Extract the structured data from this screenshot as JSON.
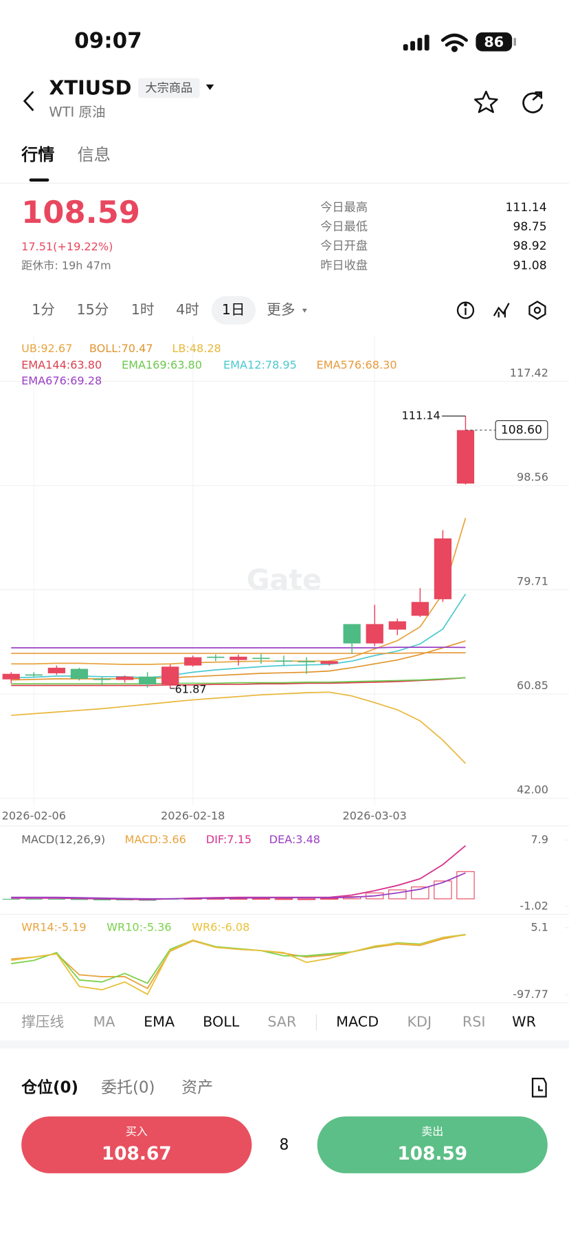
{
  "status_bar": {
    "time": "09:07",
    "battery": "86"
  },
  "header": {
    "symbol": "XTIUSD",
    "tag": "大宗商品",
    "subtitle": "WTI 原油"
  },
  "tabs": [
    "行情",
    "信息"
  ],
  "quote": {
    "price": "108.59",
    "change": "17.51(+19.22%)",
    "market_close": "距休市: 19h 47m",
    "stats": [
      {
        "label": "今日最高",
        "value": "111.14"
      },
      {
        "label": "今日最低",
        "value": "98.75"
      },
      {
        "label": "今日开盘",
        "value": "98.92"
      },
      {
        "label": "昨日收盘",
        "value": "91.08"
      }
    ]
  },
  "intervals": [
    "1分",
    "15分",
    "1时",
    "4时",
    "1日",
    "更多"
  ],
  "chart_data": [
    {
      "type": "candlestick",
      "categories": [
        null,
        "2026-02-06",
        null,
        null,
        null,
        null,
        null,
        null,
        "2026-02-18",
        null,
        null,
        null,
        null,
        null,
        null,
        null,
        "2026-03-03",
        null,
        null,
        null,
        null
      ],
      "open": [
        63.5,
        64.4,
        64.6,
        65.4,
        63.6,
        63.4,
        64.0,
        62.6,
        66.0,
        67.6,
        67.0,
        67.4,
        66.9,
        66.8,
        66.3,
        73.5,
        70.0,
        72.5,
        75.0,
        78.0,
        98.92
      ],
      "high": [
        64.8,
        64.8,
        66.0,
        65.6,
        64.0,
        64.2,
        64.8,
        66.2,
        67.8,
        68.0,
        68.0,
        68.1,
        67.8,
        67.5,
        66.9,
        73.5,
        77.0,
        74.5,
        80.0,
        90.5,
        111.14
      ],
      "low": [
        62.8,
        63.9,
        64.3,
        63.3,
        62.5,
        62.9,
        62.0,
        61.87,
        65.8,
        66.8,
        66.0,
        66.3,
        65.9,
        64.5,
        66.0,
        68.1,
        69.5,
        71.5,
        74.8,
        77.5,
        98.75
      ],
      "close": [
        64.5,
        64.2,
        65.6,
        63.6,
        63.5,
        64.0,
        62.6,
        65.8,
        67.5,
        67.4,
        67.6,
        67.3,
        66.7,
        66.7,
        66.8,
        70.0,
        73.5,
        74.0,
        77.5,
        89.0,
        108.59
      ],
      "up_color": "#e8475f",
      "down_color": "#4dbb83",
      "series": [
        {
          "name": "UB:92.67",
          "color": "#e8a33d",
          "values": [
            66.3,
            66.3,
            66.4,
            66.4,
            66.3,
            66.2,
            66.2,
            66.3,
            66.5,
            66.6,
            66.7,
            66.8,
            66.8,
            66.8,
            66.8,
            67.5,
            69,
            70.5,
            73,
            79,
            92.67
          ]
        },
        {
          "name": "BOLL:70.47",
          "color": "#e0952e",
          "values": [
            63.4,
            63.5,
            63.6,
            63.6,
            63.6,
            63.6,
            63.7,
            63.8,
            64,
            64.2,
            64.4,
            64.6,
            64.7,
            64.8,
            65,
            65.6,
            66.3,
            67,
            68,
            69.2,
            70.47
          ]
        },
        {
          "name": "LB:48.28",
          "color": "#e8b73a",
          "values": [
            57,
            57.3,
            57.6,
            57.9,
            58.2,
            58.6,
            59,
            59.4,
            59.8,
            60.1,
            60.4,
            60.7,
            60.9,
            61.1,
            61.2,
            60.5,
            59.3,
            58,
            56,
            52.5,
            48.28
          ]
        },
        {
          "name": "EMA144:63.80",
          "color": "#d9414f",
          "values": [
            62.4,
            62.4,
            62.4,
            62.4,
            62.4,
            62.4,
            62.4,
            62.5,
            62.5,
            62.6,
            62.6,
            62.7,
            62.7,
            62.8,
            62.8,
            62.9,
            63,
            63.1,
            63.3,
            63.5,
            63.8
          ]
        },
        {
          "name": "EMA169:63.80",
          "color": "#6cc84f",
          "values": [
            62.7,
            62.7,
            62.7,
            62.7,
            62.7,
            62.7,
            62.7,
            62.8,
            62.8,
            62.8,
            62.9,
            62.9,
            62.9,
            63,
            63,
            63.1,
            63.2,
            63.3,
            63.4,
            63.6,
            63.8
          ]
        },
        {
          "name": "EMA12:78.95",
          "color": "#4cc9d0",
          "values": [
            63.8,
            63.9,
            64.1,
            64.1,
            64,
            64,
            63.8,
            64.2,
            64.8,
            65.2,
            65.5,
            65.8,
            66,
            66.1,
            66.2,
            66.8,
            67.8,
            68.6,
            69.9,
            72.6,
            78.95
          ]
        },
        {
          "name": "EMA576:68.30",
          "color": "#e89a3c",
          "values": [
            68.2,
            68.2,
            68.2,
            68.2,
            68.2,
            68.2,
            68.2,
            68.2,
            68.2,
            68.2,
            68.2,
            68.2,
            68.2,
            68.2,
            68.2,
            68.2,
            68.2,
            68.2,
            68.3,
            68.3,
            68.3
          ]
        },
        {
          "name": "EMA676:69.28",
          "color": "#9b3fc4",
          "values": [
            69.2,
            69.2,
            69.2,
            69.2,
            69.2,
            69.2,
            69.2,
            69.2,
            69.2,
            69.2,
            69.2,
            69.2,
            69.2,
            69.2,
            69.2,
            69.2,
            69.2,
            69.3,
            69.3,
            69.3,
            69.28
          ]
        }
      ],
      "ylim": [
        40.71,
        125.7
      ],
      "yticks": [
        {
          "value": 42,
          "label": "42.00"
        },
        60.85,
        79.71,
        98.56,
        117.42
      ],
      "grid": true,
      "watermark": "Gate",
      "high_label": 111.14,
      "low_label": 61.87,
      "last_price": {
        "value": 108.6,
        "label": "108.60"
      }
    },
    {
      "type": "macd",
      "title": "MACD(12,26,9)",
      "name": "MACD:3.66",
      "color": "#e8a33d",
      "values": [
        -0.05,
        -0.1,
        -0.1,
        -0.15,
        -0.2,
        -0.2,
        -0.25,
        -0.1,
        0.05,
        0.05,
        0.05,
        0.05,
        0.02,
        0,
        0.05,
        0.3,
        0.8,
        1.2,
        1.6,
        2.4,
        3.66
      ],
      "up_color": "#e8475f",
      "down_color": "#4dbb83",
      "series": [
        {
          "name": "DIF:7.15",
          "color": "#d6338f",
          "values": [
            0.1,
            0.1,
            0.1,
            0.05,
            0,
            -0.05,
            -0.1,
            0,
            0.1,
            0.15,
            0.2,
            0.2,
            0.2,
            0.2,
            0.2,
            0.5,
            1.1,
            1.8,
            2.7,
            4.6,
            7.15
          ]
        },
        {
          "name": "DEA:3.48",
          "color": "#9b3fc4",
          "values": [
            0.2,
            0.2,
            0.2,
            0.15,
            0.1,
            0.05,
            0,
            0,
            0.05,
            0.1,
            0.1,
            0.15,
            0.15,
            0.15,
            0.15,
            0.2,
            0.4,
            0.8,
            1.3,
            2.2,
            3.48
          ]
        }
      ],
      "ylim": [
        -1.76,
        9.6
      ],
      "yticks": [
        -1.02,
        7.9
      ]
    },
    {
      "type": "line",
      "series": [
        {
          "name": "WR14:-5.19",
          "color": "#e8a33d",
          "values": [
            -43,
            -40,
            -35,
            -67,
            -70,
            -70,
            -88,
            -31,
            -15,
            -25,
            -28,
            -30,
            -34,
            -40,
            -37,
            -32,
            -25,
            -20,
            -22,
            -12,
            -5.19
          ]
        },
        {
          "name": "WR10:-5.36",
          "color": "#7bd14a",
          "values": [
            -50,
            -45,
            -33,
            -75,
            -78,
            -65,
            -80,
            -28,
            -14,
            -24,
            -27,
            -30,
            -38,
            -38,
            -35,
            -32,
            -24,
            -18,
            -20,
            -10,
            -5.36
          ]
        },
        {
          "name": "WR6:-6.08",
          "color": "#e8c13a",
          "values": [
            -45,
            -40,
            -35,
            -85,
            -90,
            -78,
            -97,
            -30,
            -14,
            -25,
            -28,
            -30,
            -33,
            -48,
            -42,
            -32,
            -23,
            -19,
            -21,
            -10,
            -6.08
          ]
        }
      ],
      "ylim": [
        -107.45,
        23.2
      ],
      "yticks": [
        -97.77,
        5.1
      ]
    }
  ],
  "indicators": [
    "撑压线",
    "MA",
    "EMA",
    "BOLL",
    "SAR",
    "MACD",
    "KDJ",
    "RSI",
    "WR"
  ],
  "positions": {
    "tabs": [
      "仓位(0)",
      "委托(0)",
      "资产"
    ]
  },
  "trade": {
    "buy_label": "买入",
    "buy_price": "108.67",
    "quantity": "8",
    "sell_label": "卖出",
    "sell_price": "108.59"
  }
}
